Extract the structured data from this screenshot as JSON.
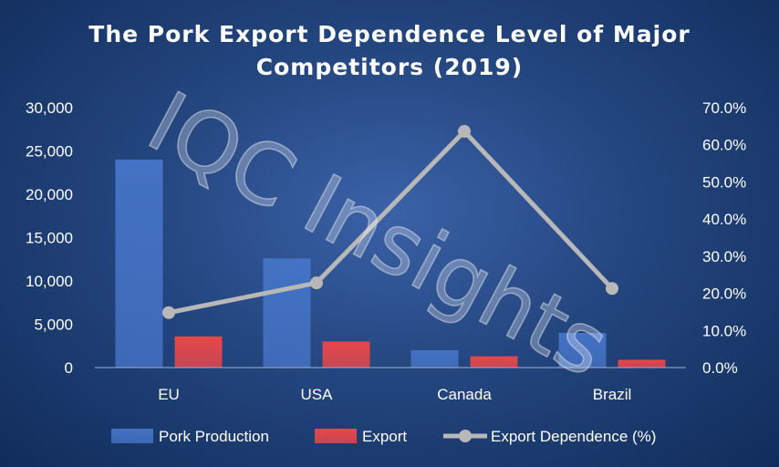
{
  "chart_data": {
    "type": "bar",
    "title_lines": [
      "The Pork Export Dependence Level of Major",
      "Competitors (2019)"
    ],
    "categories": [
      "EU",
      "USA",
      "Canada",
      "Brazil"
    ],
    "series": [
      {
        "name": "Pork Production",
        "kind": "bar",
        "axis": "left",
        "color": "#4472c4",
        "values": [
          24000,
          12600,
          2000,
          4000
        ]
      },
      {
        "name": "Export",
        "kind": "bar",
        "axis": "left",
        "color": "#e8474a",
        "values": [
          3600,
          3000,
          1300,
          900
        ]
      },
      {
        "name": "Export Dependence (%)",
        "kind": "line",
        "axis": "right",
        "color": "#b8b8b8",
        "values": [
          14.8,
          22.8,
          63.6,
          21.3
        ]
      }
    ],
    "y_left": {
      "min": 0,
      "max": 30000,
      "step": 5000,
      "tick_labels": [
        "0",
        "5,000",
        "10,000",
        "15,000",
        "20,000",
        "25,000",
        "30,000"
      ]
    },
    "y_right": {
      "min": 0,
      "max": 70,
      "step": 10,
      "tick_labels": [
        "0.0%",
        "10.0%",
        "20.0%",
        "30.0%",
        "40.0%",
        "50.0%",
        "60.0%",
        "70.0%"
      ]
    },
    "grid": false,
    "legend": "bottom",
    "watermark": "IQC Insights"
  }
}
